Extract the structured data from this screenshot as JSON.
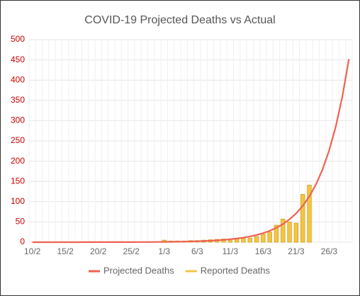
{
  "chart_data": {
    "type": "bar_line",
    "title": "COVID-19 Projected Deaths vs Actual",
    "categories": [
      "10/2",
      null,
      null,
      null,
      null,
      "15/2",
      null,
      null,
      null,
      null,
      "20/2",
      null,
      null,
      null,
      null,
      "25/2",
      null,
      null,
      null,
      null,
      "1/3",
      null,
      null,
      null,
      null,
      "6/3",
      null,
      null,
      null,
      null,
      "11/3",
      null,
      null,
      null,
      null,
      "16/3",
      null,
      null,
      null,
      null,
      "21/3",
      null,
      null,
      null,
      null,
      "26/3",
      null,
      null,
      null
    ],
    "series": [
      {
        "name": "Projected Deaths",
        "color": "#f0614f",
        "kind": "line",
        "values": [
          0,
          0,
          0,
          0,
          0,
          0,
          0,
          0,
          0.1,
          0.1,
          0.1,
          0.1,
          0.1,
          0.1,
          0.2,
          0.2,
          0.3,
          0.4,
          0.4,
          0.6,
          0.7,
          0.9,
          1.1,
          1.4,
          1.8,
          2.2,
          2.8,
          3.5,
          4.5,
          5.6,
          7.1,
          8.9,
          11.2,
          14.1,
          17.8,
          22.4,
          28.2,
          35.6,
          44.8,
          56.5,
          71.2,
          89.6,
          113,
          142.3,
          179.3,
          226,
          284.7,
          358.7,
          452
        ]
      },
      {
        "name": "Reported Deaths",
        "color": "#f5c542",
        "kind": "bar",
        "values": [
          null,
          null,
          null,
          null,
          null,
          null,
          null,
          null,
          null,
          null,
          null,
          null,
          null,
          null,
          null,
          null,
          null,
          null,
          null,
          null,
          5,
          3,
          3,
          3,
          4,
          4,
          5,
          6,
          7,
          8,
          4,
          9,
          9,
          10,
          14,
          20,
          25,
          42,
          57,
          50,
          47,
          118,
          141,
          null,
          null,
          null,
          null,
          null,
          null
        ]
      }
    ],
    "ylim": [
      0,
      500
    ],
    "yticks": [
      0,
      50,
      100,
      150,
      200,
      250,
      300,
      350,
      400,
      450,
      500
    ],
    "ytick_color": "#cc0000",
    "grid": true
  }
}
